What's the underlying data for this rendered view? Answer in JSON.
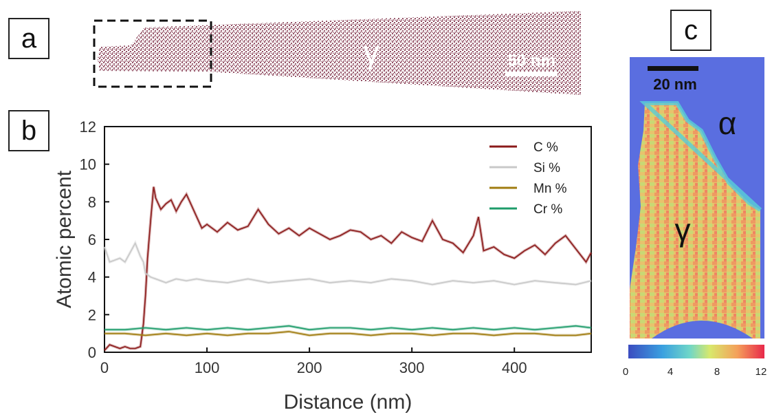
{
  "panels": {
    "a": "a",
    "b": "b",
    "c": "c"
  },
  "panel_a": {
    "phase_label": "γ",
    "scale_bar": "50 nm",
    "atom_color": "#6b0f2a"
  },
  "panel_c": {
    "scale_bar": "20 nm",
    "alpha_label": "α",
    "gamma_label": "γ",
    "colorbar_ticks": [
      "0",
      "4",
      "8",
      "12"
    ]
  },
  "chart_data": {
    "type": "line",
    "xlabel": "Distance (nm)",
    "ylabel": "Atomic percent",
    "xlim": [
      0,
      475
    ],
    "ylim": [
      0,
      12
    ],
    "xticks": [
      0,
      100,
      200,
      300,
      400
    ],
    "yticks": [
      0,
      2,
      4,
      6,
      8,
      10,
      12
    ],
    "legend_position": "top-right",
    "series": [
      {
        "name": "C %",
        "color": "#8b1a1a",
        "x": [
          0,
          5,
          10,
          15,
          20,
          25,
          30,
          35,
          38,
          40,
          42,
          45,
          48,
          50,
          55,
          60,
          65,
          70,
          75,
          80,
          85,
          90,
          95,
          100,
          110,
          120,
          130,
          140,
          150,
          160,
          170,
          180,
          190,
          200,
          210,
          220,
          230,
          240,
          250,
          260,
          270,
          280,
          290,
          300,
          310,
          320,
          330,
          340,
          350,
          360,
          365,
          370,
          380,
          390,
          400,
          410,
          420,
          430,
          440,
          450,
          460,
          470,
          475
        ],
        "values": [
          0.1,
          0.4,
          0.3,
          0.2,
          0.3,
          0.2,
          0.2,
          0.3,
          1.5,
          3.0,
          5.0,
          7.0,
          8.8,
          8.2,
          7.6,
          7.9,
          8.1,
          7.5,
          8.0,
          8.4,
          7.8,
          7.2,
          6.6,
          6.8,
          6.4,
          6.9,
          6.5,
          6.7,
          7.6,
          6.8,
          6.3,
          6.6,
          6.2,
          6.6,
          6.3,
          6.0,
          6.2,
          6.5,
          6.4,
          6.0,
          6.2,
          5.8,
          6.4,
          6.1,
          5.9,
          7.0,
          6.0,
          5.8,
          5.3,
          6.2,
          7.2,
          5.4,
          5.6,
          5.2,
          5.0,
          5.4,
          5.7,
          5.2,
          5.8,
          6.2,
          5.5,
          4.8,
          5.3
        ]
      },
      {
        "name": "Si %",
        "color": "#c8c8c8",
        "x": [
          0,
          5,
          10,
          15,
          20,
          25,
          30,
          35,
          38,
          40,
          45,
          50,
          60,
          70,
          80,
          90,
          100,
          120,
          140,
          160,
          180,
          200,
          220,
          240,
          260,
          280,
          300,
          320,
          340,
          360,
          380,
          400,
          420,
          440,
          460,
          475
        ],
        "values": [
          5.6,
          4.8,
          4.9,
          5.0,
          4.8,
          5.3,
          5.8,
          5.1,
          4.8,
          4.2,
          4.0,
          3.9,
          3.7,
          3.9,
          3.8,
          3.9,
          3.8,
          3.7,
          3.9,
          3.7,
          3.8,
          3.9,
          3.7,
          3.8,
          3.7,
          3.9,
          3.8,
          3.6,
          3.8,
          3.7,
          3.8,
          3.6,
          3.8,
          3.7,
          3.6,
          3.8
        ]
      },
      {
        "name": "Mn %",
        "color": "#a07c10",
        "x": [
          0,
          20,
          40,
          60,
          80,
          100,
          120,
          140,
          160,
          180,
          200,
          220,
          240,
          260,
          280,
          300,
          320,
          340,
          360,
          380,
          400,
          420,
          440,
          460,
          475
        ],
        "values": [
          1.0,
          1.0,
          0.9,
          1.0,
          0.9,
          1.0,
          0.9,
          1.0,
          1.0,
          1.1,
          0.9,
          1.0,
          1.0,
          0.9,
          1.0,
          1.0,
          0.9,
          1.0,
          1.0,
          0.9,
          1.0,
          1.0,
          0.9,
          0.9,
          1.0
        ]
      },
      {
        "name": "Cr %",
        "color": "#1e9c6a",
        "x": [
          0,
          20,
          40,
          60,
          80,
          100,
          120,
          140,
          160,
          180,
          200,
          220,
          240,
          260,
          280,
          300,
          320,
          340,
          360,
          380,
          400,
          420,
          440,
          460,
          475
        ],
        "values": [
          1.2,
          1.2,
          1.3,
          1.2,
          1.3,
          1.2,
          1.3,
          1.2,
          1.3,
          1.4,
          1.2,
          1.3,
          1.3,
          1.2,
          1.3,
          1.2,
          1.3,
          1.2,
          1.3,
          1.2,
          1.3,
          1.2,
          1.3,
          1.4,
          1.3
        ]
      }
    ]
  }
}
